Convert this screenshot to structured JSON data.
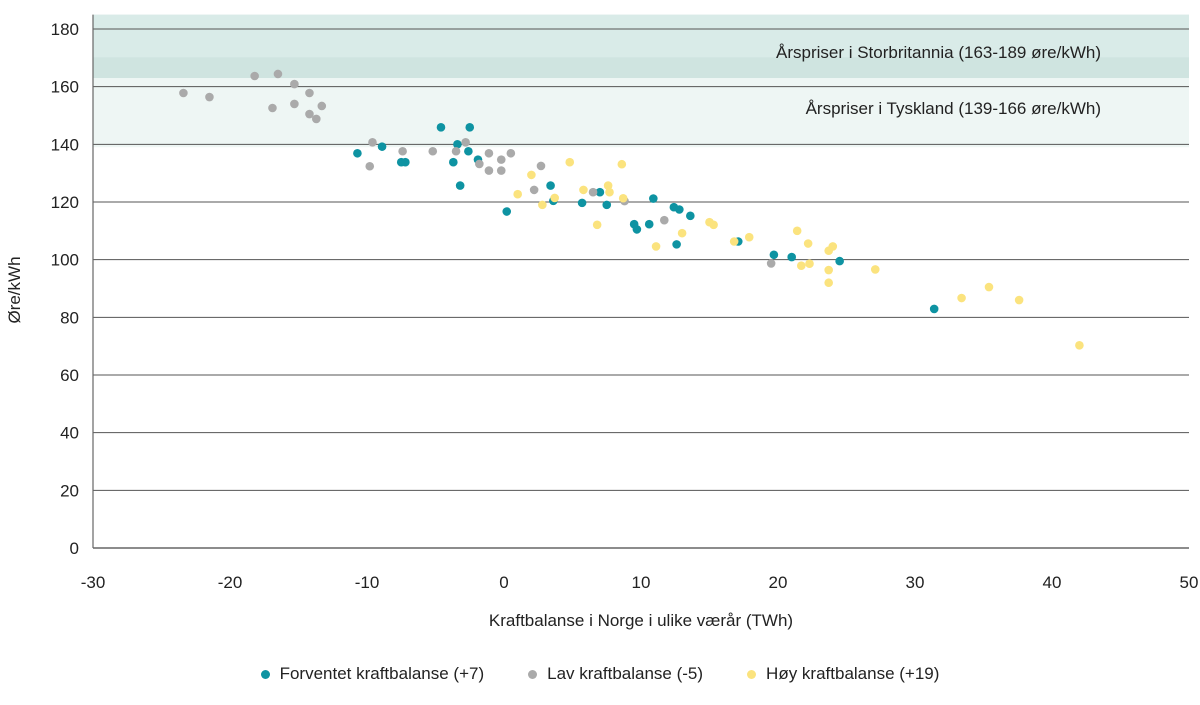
{
  "chart_data": {
    "type": "scatter",
    "title": "",
    "xlabel": "Kraftbalanse i Norge i ulike værår (TWh)",
    "ylabel": "Øre/kWh",
    "xlim": [
      -30,
      50
    ],
    "ylim": [
      0,
      185
    ],
    "x_ticks": [
      -30,
      -20,
      -10,
      0,
      10,
      20,
      30,
      40,
      50
    ],
    "y_ticks": [
      0,
      20,
      40,
      60,
      80,
      100,
      120,
      140,
      160,
      180
    ],
    "grid": "horizontal",
    "legend_position": "bottom",
    "bands": [
      {
        "name": "Årspriser i Storbritannia (163-189 øre/kWh)",
        "y_min": 163,
        "y_max": 189,
        "color": "#d9ebe8"
      },
      {
        "name": "Årspriser i Tyskland (139-166 øre/kWh)",
        "y_min": 139,
        "y_max": 166,
        "color": "#eef6f4"
      }
    ],
    "series": [
      {
        "name": "Forventet kraftbalanse (+7)",
        "color": "#0e93a2",
        "points": [
          [
            -10.7,
            136.9
          ],
          [
            -8.9,
            139.2
          ],
          [
            -7.5,
            133.8
          ],
          [
            -7.2,
            133.8
          ],
          [
            -4.6,
            145.9
          ],
          [
            -2.5,
            145.9
          ],
          [
            -3.4,
            140.0
          ],
          [
            -3.7,
            133.8
          ],
          [
            -2.6,
            137.6
          ],
          [
            -1.9,
            134.7
          ],
          [
            -3.2,
            125.7
          ],
          [
            0.2,
            116.7
          ],
          [
            3.4,
            125.7
          ],
          [
            3.6,
            120.4
          ],
          [
            5.7,
            119.7
          ],
          [
            7.0,
            123.4
          ],
          [
            7.5,
            119.0
          ],
          [
            10.9,
            121.2
          ],
          [
            9.5,
            112.3
          ],
          [
            9.7,
            110.5
          ],
          [
            10.6,
            112.3
          ],
          [
            12.4,
            118.2
          ],
          [
            12.8,
            117.4
          ],
          [
            13.6,
            115.2
          ],
          [
            12.6,
            105.3
          ],
          [
            17.1,
            106.3
          ],
          [
            19.7,
            101.7
          ],
          [
            21.0,
            100.9
          ],
          [
            24.5,
            99.5
          ],
          [
            31.4,
            82.9
          ]
        ]
      },
      {
        "name": "Lav kraftbalanse (-5)",
        "color": "#aaaaaa",
        "points": [
          [
            -23.4,
            157.8
          ],
          [
            -21.5,
            156.4
          ],
          [
            -18.2,
            163.7
          ],
          [
            -16.5,
            164.4
          ],
          [
            -15.3,
            160.9
          ],
          [
            -14.2,
            157.8
          ],
          [
            -16.9,
            152.6
          ],
          [
            -15.3,
            154.0
          ],
          [
            -14.2,
            150.5
          ],
          [
            -13.7,
            148.8
          ],
          [
            -13.3,
            153.3
          ],
          [
            -9.6,
            140.7
          ],
          [
            -9.8,
            132.4
          ],
          [
            -7.4,
            137.6
          ],
          [
            -5.2,
            137.6
          ],
          [
            -3.5,
            137.6
          ],
          [
            -2.8,
            140.7
          ],
          [
            -1.1,
            136.9
          ],
          [
            -1.8,
            133.2
          ],
          [
            -1.1,
            130.9
          ],
          [
            -0.2,
            134.7
          ],
          [
            -0.2,
            130.9
          ],
          [
            0.5,
            136.9
          ],
          [
            2.2,
            124.2
          ],
          [
            2.7,
            132.5
          ],
          [
            6.5,
            123.4
          ],
          [
            8.8,
            120.3
          ],
          [
            11.7,
            113.7
          ],
          [
            19.5,
            98.7
          ]
        ]
      },
      {
        "name": "Høy kraftbalanse (+19)",
        "color": "#fbe37e",
        "points": [
          [
            2.0,
            129.4
          ],
          [
            1.0,
            122.7
          ],
          [
            4.8,
            133.8
          ],
          [
            2.8,
            119.0
          ],
          [
            3.7,
            121.4
          ],
          [
            5.8,
            124.2
          ],
          [
            7.6,
            125.7
          ],
          [
            7.7,
            123.4
          ],
          [
            8.6,
            133.1
          ],
          [
            8.7,
            121.3
          ],
          [
            6.8,
            112.1
          ],
          [
            13.0,
            109.2
          ],
          [
            11.1,
            104.6
          ],
          [
            15.0,
            113.0
          ],
          [
            15.3,
            112.1
          ],
          [
            16.8,
            106.3
          ],
          [
            17.9,
            107.8
          ],
          [
            21.4,
            110.0
          ],
          [
            22.2,
            105.6
          ],
          [
            23.7,
            103.1
          ],
          [
            24.0,
            104.6
          ],
          [
            21.7,
            97.9
          ],
          [
            22.3,
            98.6
          ],
          [
            23.7,
            96.4
          ],
          [
            23.7,
            92.0
          ],
          [
            27.1,
            96.6
          ],
          [
            33.4,
            86.7
          ],
          [
            35.4,
            90.5
          ],
          [
            37.6,
            86.0
          ],
          [
            42.0,
            70.3
          ]
        ]
      }
    ]
  }
}
